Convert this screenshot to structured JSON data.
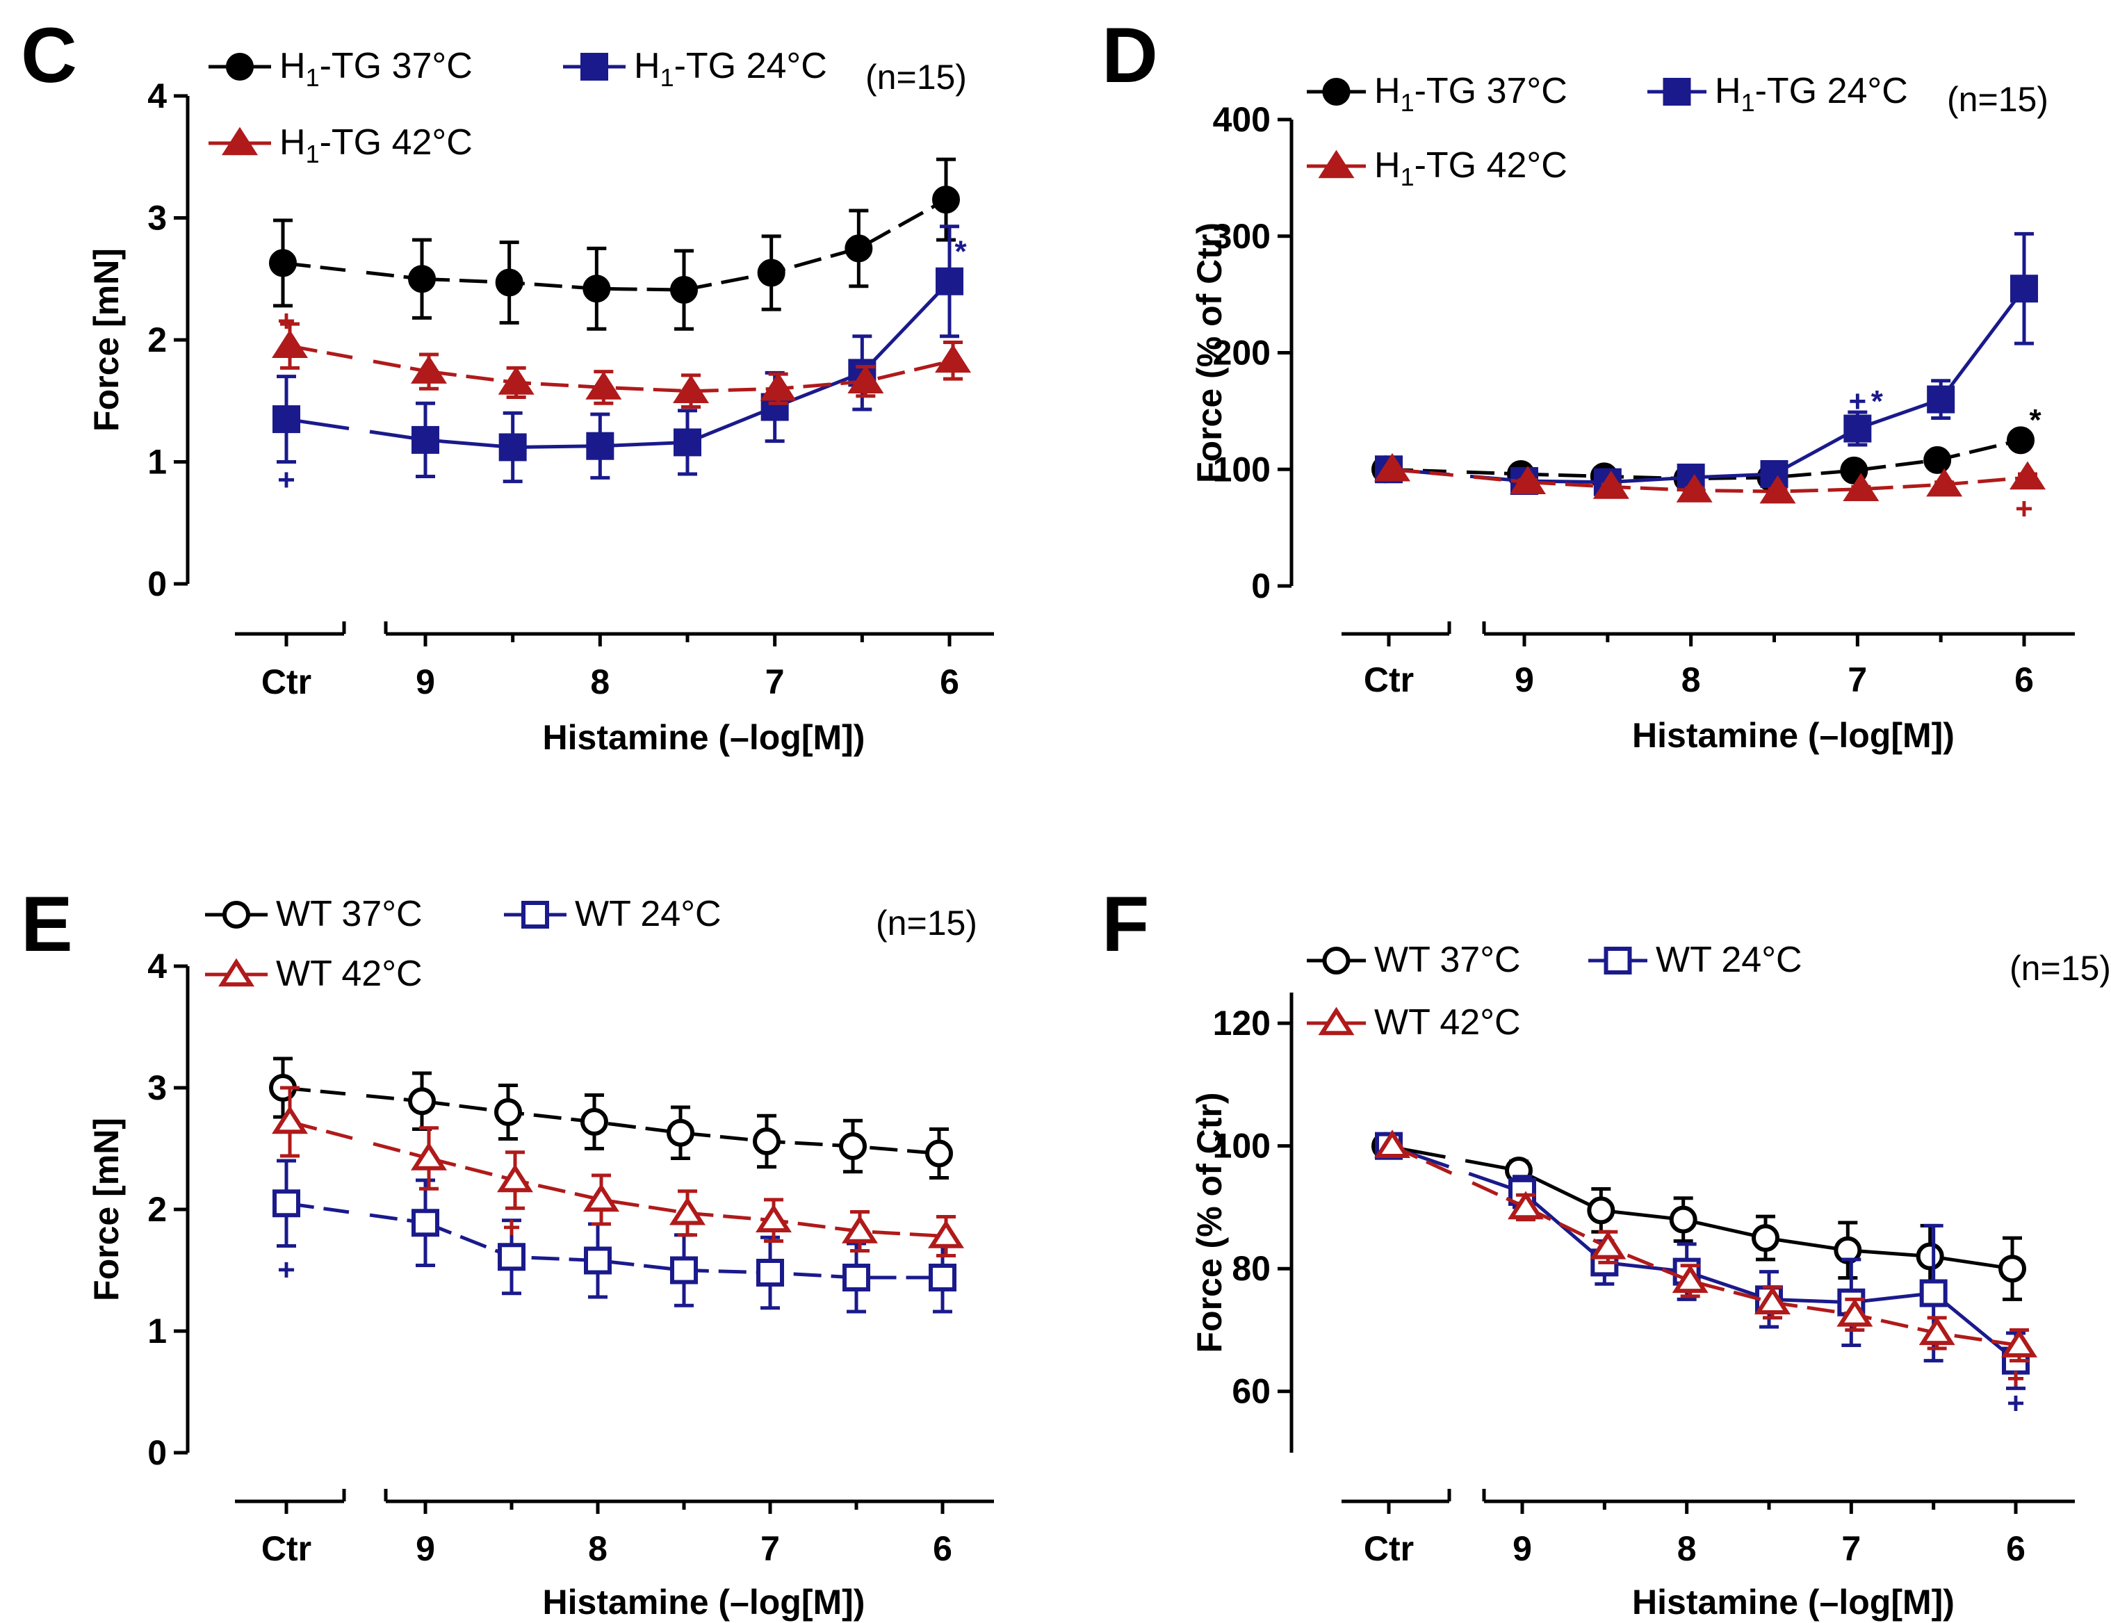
{
  "figure": {
    "colors": {
      "black": "#000000",
      "blue": "#1a1a8c",
      "red": "#b01a1a"
    },
    "x_tick_labels": [
      "Ctr",
      "9",
      "8",
      "7",
      "6"
    ],
    "x_axis_title": "Histamine (–log[M])"
  },
  "chart_data": [
    {
      "panel": "C",
      "type": "line",
      "title": "",
      "xlabel": "Histamine (–log[M])",
      "ylabel": "Force [mN]",
      "ylim": [
        0,
        4
      ],
      "yticks": [
        "0",
        "1",
        "2",
        "3",
        "4"
      ],
      "n_label": "(n=15)",
      "x": [
        "Ctr",
        "9",
        "8.5",
        "8",
        "7.5",
        "7",
        "6.5",
        "6"
      ],
      "series": [
        {
          "name": "37°C",
          "label_main": "H",
          "label_sub": "1",
          "label_rest": "-TG 37°C",
          "color": "#000000",
          "marker": "circle",
          "filled": true,
          "dash": true,
          "values": [
            2.63,
            2.5,
            2.47,
            2.42,
            2.41,
            2.55,
            2.75,
            3.15
          ],
          "err": [
            0.35,
            0.32,
            0.33,
            0.33,
            0.32,
            0.3,
            0.31,
            0.33
          ]
        },
        {
          "name": "24°C",
          "label_main": "H",
          "label_sub": "1",
          "label_rest": "-TG 24°C",
          "color": "#1a1a8c",
          "marker": "square",
          "filled": true,
          "dash": false,
          "values": [
            1.35,
            1.18,
            1.12,
            1.13,
            1.16,
            1.45,
            1.73,
            2.48
          ],
          "err": [
            0.35,
            0.3,
            0.28,
            0.26,
            0.26,
            0.28,
            0.3,
            0.45
          ]
        },
        {
          "name": "42°C",
          "label_main": "H",
          "label_sub": "1",
          "label_rest": "-TG 42°C",
          "color": "#b01a1a",
          "marker": "triangle",
          "filled": true,
          "dash": true,
          "values": [
            1.95,
            1.74,
            1.65,
            1.61,
            1.58,
            1.6,
            1.66,
            1.83
          ],
          "err": [
            0.18,
            0.14,
            0.12,
            0.13,
            0.13,
            0.12,
            0.12,
            0.15
          ]
        }
      ],
      "annotations": [
        {
          "text": "+",
          "color": "#1a1a8c",
          "x": "Ctr",
          "y": 0.85
        },
        {
          "text": "+",
          "color": "#b01a1a",
          "x": "Ctr",
          "y": 2.15
        },
        {
          "text": "*",
          "color": "#1a1a8c",
          "x": "6",
          "y": 2.72
        }
      ]
    },
    {
      "panel": "D",
      "type": "line",
      "title": "",
      "xlabel": "Histamine (–log[M])",
      "ylabel": "Force (% of Ctr)",
      "ylim": [
        0,
        400
      ],
      "yticks": [
        "0",
        "100",
        "200",
        "300",
        "400"
      ],
      "n_label": "(n=15)",
      "x": [
        "Ctr",
        "9",
        "8.5",
        "8",
        "7.5",
        "7",
        "6.5",
        "6"
      ],
      "series": [
        {
          "name": "37°C",
          "label_main": "H",
          "label_sub": "1",
          "label_rest": "-TG 37°C",
          "color": "#000000",
          "marker": "circle",
          "filled": true,
          "dash": true,
          "values": [
            100,
            96,
            94,
            92,
            93,
            99,
            108,
            125
          ],
          "err": [
            0,
            2,
            2,
            2,
            2,
            3,
            4,
            5
          ]
        },
        {
          "name": "24°C",
          "label_main": "H",
          "label_sub": "1",
          "label_rest": "-TG 24°C",
          "color": "#1a1a8c",
          "marker": "square",
          "filled": true,
          "dash": false,
          "values": [
            100,
            90,
            89,
            93,
            96,
            135,
            160,
            255
          ],
          "err": [
            0,
            3,
            3,
            4,
            4,
            14,
            16,
            47
          ]
        },
        {
          "name": "42°C",
          "label_main": "H",
          "label_sub": "1",
          "label_rest": "-TG 42°C",
          "color": "#b01a1a",
          "marker": "triangle",
          "filled": true,
          "dash": true,
          "values": [
            100,
            89,
            85,
            82,
            81,
            83,
            87,
            93
          ],
          "err": [
            0,
            2,
            2,
            2,
            2,
            2,
            2,
            3
          ]
        }
      ],
      "annotations": [
        {
          "text": "+",
          "color": "#1a1a8c",
          "x": "7",
          "y": 158
        },
        {
          "text": "*",
          "color": "#1a1a8c",
          "x": "7",
          "y": 158
        },
        {
          "text": "*",
          "color": "#000000",
          "x": "6",
          "y": 142
        },
        {
          "text": "+",
          "color": "#b01a1a",
          "x": "6",
          "y": 66
        }
      ]
    },
    {
      "panel": "E",
      "type": "line",
      "title": "",
      "xlabel": "Histamine (–log[M])",
      "ylabel": "Force [mN]",
      "ylim": [
        0,
        4
      ],
      "yticks": [
        "0",
        "1",
        "2",
        "3",
        "4"
      ],
      "n_label": "(n=15)",
      "x": [
        "Ctr",
        "9",
        "8.5",
        "8",
        "7.5",
        "7",
        "6.5",
        "6"
      ],
      "series": [
        {
          "name": "37°C",
          "label_main": "WT 37°C",
          "label_sub": "",
          "label_rest": "",
          "color": "#000000",
          "marker": "circle",
          "filled": false,
          "dash": true,
          "values": [
            3.0,
            2.89,
            2.8,
            2.72,
            2.63,
            2.56,
            2.52,
            2.46
          ],
          "err": [
            0.24,
            0.23,
            0.22,
            0.22,
            0.21,
            0.21,
            0.21,
            0.2
          ]
        },
        {
          "name": "24°C",
          "label_main": "WT 24°C",
          "label_sub": "",
          "label_rest": "",
          "color": "#1a1a8c",
          "marker": "square",
          "filled": false,
          "dash": true,
          "values": [
            2.05,
            1.89,
            1.61,
            1.58,
            1.5,
            1.48,
            1.44,
            1.44
          ],
          "err": [
            0.35,
            0.35,
            0.3,
            0.3,
            0.29,
            0.29,
            0.28,
            0.28
          ]
        },
        {
          "name": "42°C",
          "label_main": "WT 42°C",
          "label_sub": "",
          "label_rest": "",
          "color": "#b01a1a",
          "marker": "triangle",
          "filled": false,
          "dash": true,
          "values": [
            2.72,
            2.42,
            2.24,
            2.08,
            1.97,
            1.91,
            1.82,
            1.78
          ],
          "err": [
            0.28,
            0.25,
            0.23,
            0.2,
            0.18,
            0.17,
            0.16,
            0.16
          ]
        }
      ],
      "annotations": [
        {
          "text": "+",
          "color": "#1a1a8c",
          "x": "Ctr",
          "y": 1.5
        },
        {
          "text": "+",
          "color": "#b01a1a",
          "x": "8.5",
          "y": 1.85
        }
      ]
    },
    {
      "panel": "F",
      "type": "line",
      "title": "",
      "xlabel": "Histamine (–log[M])",
      "ylabel": "Force (% of Ctr)",
      "ylim": [
        50,
        125
      ],
      "yticks": [
        "60",
        "80",
        "100",
        "120"
      ],
      "n_label": "(n=15)",
      "x": [
        "Ctr",
        "9",
        "8.5",
        "8",
        "7.5",
        "7",
        "6.5",
        "6"
      ],
      "series": [
        {
          "name": "37°C",
          "label_main": "WT 37°C",
          "label_sub": "",
          "label_rest": "",
          "color": "#000000",
          "marker": "circle",
          "filled": false,
          "dash": false,
          "values": [
            100,
            96,
            89.5,
            88,
            85,
            83,
            82,
            80
          ],
          "err": [
            0,
            1.5,
            3.5,
            3.5,
            3.5,
            4.5,
            5.0,
            5.0
          ]
        },
        {
          "name": "24°C",
          "label_main": "WT 24°C",
          "label_sub": "",
          "label_rest": "",
          "color": "#1a1a8c",
          "marker": "square",
          "filled": false,
          "dash": false,
          "values": [
            100,
            92.5,
            81,
            79.5,
            75,
            74.5,
            76,
            65
          ],
          "err": [
            0,
            2.5,
            3.5,
            4.5,
            4.5,
            7.0,
            11.0,
            4.5
          ]
        },
        {
          "name": "42°C",
          "label_main": "WT 42°C",
          "label_sub": "",
          "label_rest": "",
          "color": "#b01a1a",
          "marker": "triangle",
          "filled": false,
          "dash": true,
          "values": [
            100,
            90,
            83.5,
            78,
            74.5,
            72.5,
            69.5,
            67.5
          ],
          "err": [
            0,
            2,
            2.5,
            2.5,
            2.5,
            2.5,
            2.5,
            2.5
          ]
        }
      ],
      "annotations": [
        {
          "text": "+",
          "color": "#1a1a8c",
          "x": "6",
          "y": 58
        },
        {
          "text": "+",
          "color": "#b01a1a",
          "x": "6",
          "y": 62
        }
      ]
    }
  ]
}
